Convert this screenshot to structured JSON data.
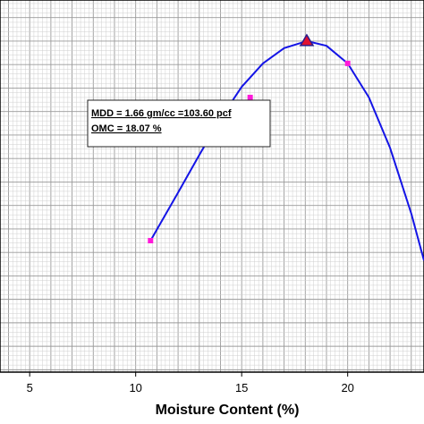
{
  "chart_data": {
    "type": "line",
    "xlabel": "Moisture Content (%)",
    "ylabel": "",
    "title": "",
    "xlim": [
      3.6,
      23.6
    ],
    "x_ticks": [
      5,
      10,
      15,
      20
    ],
    "x_tick_labels": [
      "5",
      "10",
      "15",
      "20"
    ],
    "grid": true,
    "series": [
      {
        "type": "points",
        "x": [
          10.7,
          15.4,
          20.0
        ],
        "y": [
          1.49,
          1.612,
          1.641
        ]
      },
      {
        "type": "optimum",
        "x": [
          18.07
        ],
        "y": [
          1.66
        ]
      },
      {
        "type": "curve",
        "x": [
          10.7,
          12.0,
          13.0,
          14.0,
          15.0,
          16.0,
          17.0,
          18.07,
          19.0,
          20.0,
          21.0,
          22.0,
          23.0,
          23.6
        ],
        "y": [
          1.49,
          1.531,
          1.563,
          1.594,
          1.621,
          1.641,
          1.654,
          1.66,
          1.656,
          1.641,
          1.612,
          1.569,
          1.513,
          1.473
        ]
      }
    ]
  },
  "annotation": {
    "line1": "MDD = 1.66 gm/cc =103.60  pcf",
    "line2": "OMC = 18.07 %"
  }
}
